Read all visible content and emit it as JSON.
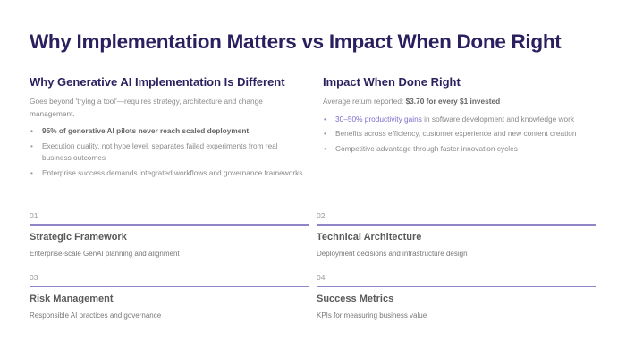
{
  "title": "Why Implementation Matters vs Impact When Done Right",
  "left": {
    "heading": "Why Generative AI Implementation Is Different",
    "intro": "Goes beyond 'trying a tool'—requires strategy, architecture and change management.",
    "bullets": [
      "95% of generative AI pilots never reach scaled deployment",
      "Execution quality, not hype level, separates failed experiments from real business outcomes",
      "Enterprise success demands integrated workflows and governance frameworks"
    ]
  },
  "right": {
    "heading": "Impact When Done Right",
    "intro_prefix": "Average return reported: ",
    "intro_bold": "$3.70 for every $1 invested",
    "bullet1_highlight": "30–50% productivity gains",
    "bullet1_rest": " in software development and knowledge work",
    "bullets": [
      "Benefits across efficiency, customer experience and new content creation",
      "Competitive advantage through faster innovation cycles"
    ]
  },
  "cards": [
    {
      "num": "01",
      "title": "Strategic Framework",
      "desc": "Enterprise-scale GenAI planning and alignment"
    },
    {
      "num": "02",
      "title": "Technical Architecture",
      "desc": "Deployment decisions and infrastructure design"
    },
    {
      "num": "03",
      "title": "Risk Management",
      "desc": "Responsible AI practices and governance"
    },
    {
      "num": "04",
      "title": "Success Metrics",
      "desc": "KPIs for measuring business value"
    }
  ],
  "colors": {
    "title": "#2b1f5f",
    "accent": "#7a6fcc",
    "rule": "#8f86c8"
  }
}
